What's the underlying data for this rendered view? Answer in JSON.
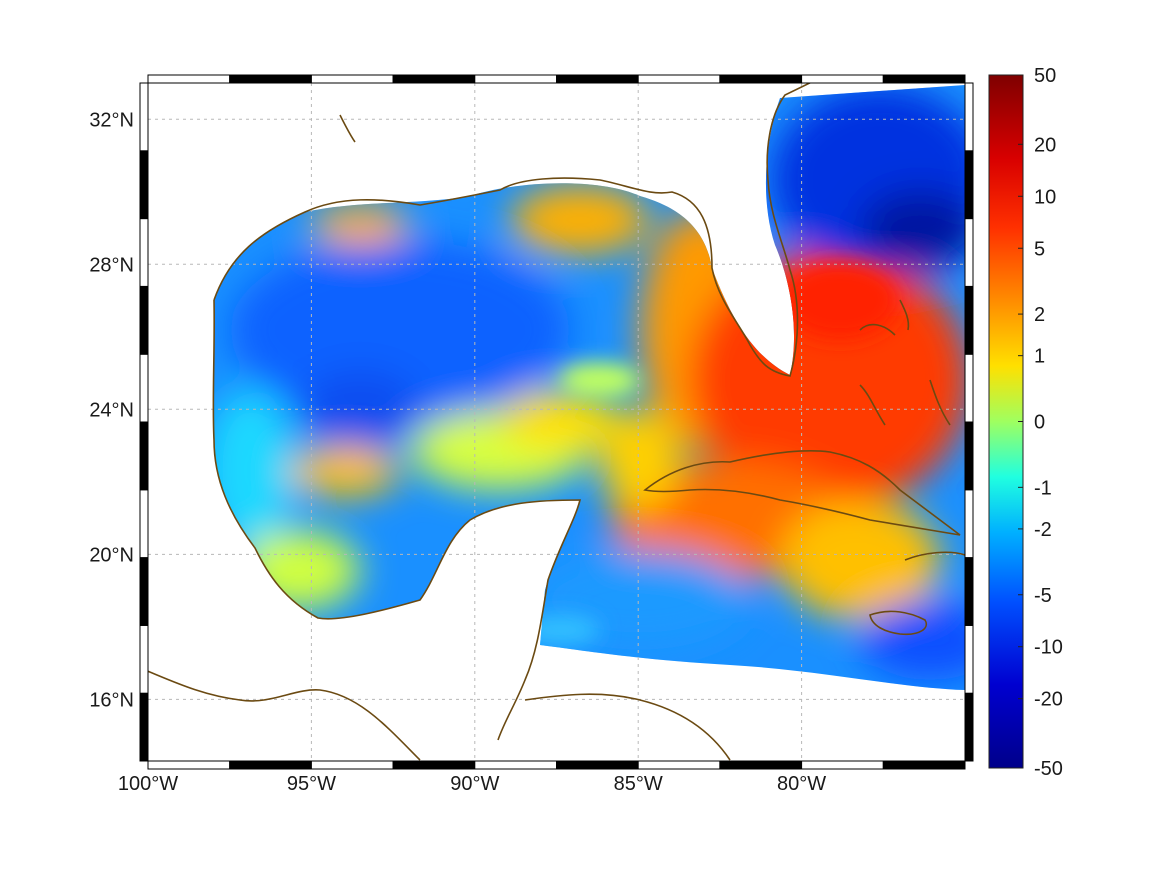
{
  "map": {
    "extent": {
      "lon": [
        -100,
        -75
      ],
      "lat": [
        14.3,
        33.0
      ]
    },
    "frame_style": "alternating black/white border",
    "grid": "dotted",
    "coastline_color": "#6b4a12",
    "lon_ticks": [
      {
        "value": -100,
        "label": "100°W"
      },
      {
        "value": -95,
        "label": "95°W"
      },
      {
        "value": -90,
        "label": "90°W"
      },
      {
        "value": -85,
        "label": "85°W"
      },
      {
        "value": -80,
        "label": "80°W"
      }
    ],
    "lat_ticks": [
      {
        "value": 32,
        "label": "32°N"
      },
      {
        "value": 28,
        "label": "28°N"
      },
      {
        "value": 24,
        "label": "24°N"
      },
      {
        "value": 20,
        "label": "20°N"
      },
      {
        "value": 16,
        "label": "16°N"
      }
    ],
    "field": {
      "description_colors": {
        "gulf_interior": "blue/cyan (negative)",
        "loop_current": "yellow/green",
        "caribbean_bahamas": "orange/red (positive)",
        "atlantic_ne": "deep blue (negative)"
      }
    }
  },
  "colorbar": {
    "labels": [
      "50",
      "20",
      "10",
      "5",
      "2",
      "1",
      "0",
      "-1",
      "-2",
      "-5",
      "-10",
      "-20",
      "-50"
    ],
    "colormap": [
      "#7f0000",
      "#ff0000",
      "#ff8000",
      "#ffff00",
      "#80ff80",
      "#00ffff",
      "#0080ff",
      "#0000ff",
      "#00008f"
    ]
  }
}
